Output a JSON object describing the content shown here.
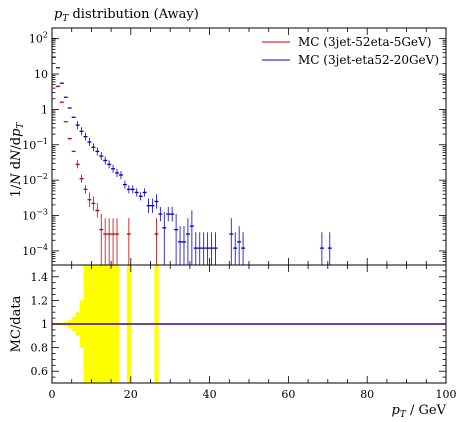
{
  "chart_data": [
    {
      "type": "scatter",
      "panel": "main",
      "title": "p_T distribution (Away)",
      "xlabel": "p_T / GeV",
      "ylabel": "1/N dN/dp_T",
      "xlim": [
        0,
        100
      ],
      "ylim": [
        4e-05,
        200
      ],
      "log_y": true,
      "y_tick_labels": [
        "10^{-4}",
        "10^{-3}",
        "10^{-2}",
        "10^{-1}",
        "1",
        "10",
        "10^{2}"
      ],
      "legend_position": "top-right",
      "series": [
        {
          "name": "MC (3jet-52eta-5GeV)",
          "color": "#cc0000",
          "points": [
            {
              "x": 0.5,
              "y": 30
            },
            {
              "x": 1.5,
              "y": 4.5
            },
            {
              "x": 2.5,
              "y": 1.6
            },
            {
              "x": 3.5,
              "y": 0.45
            },
            {
              "x": 4.5,
              "y": 0.15
            },
            {
              "x": 5.5,
              "y": 0.065
            },
            {
              "x": 6.5,
              "y": 0.028
            },
            {
              "x": 7.5,
              "y": 0.011
            },
            {
              "x": 8.5,
              "y": 0.0055
            },
            {
              "x": 9.5,
              "y": 0.0028
            },
            {
              "x": 10.5,
              "y": 0.0022
            },
            {
              "x": 11.5,
              "y": 0.0014
            },
            {
              "x": 12.5,
              "y": 0.0004
            },
            {
              "x": 13.5,
              "y": 0.0003
            },
            {
              "x": 14.5,
              "y": 0.0003
            },
            {
              "x": 15.5,
              "y": 0.0003
            },
            {
              "x": 16.5,
              "y": 0.0003
            },
            {
              "x": 19.5,
              "y": 0.0003
            },
            {
              "x": 26.5,
              "y": 0.0003
            }
          ]
        },
        {
          "name": "MC (3jet-eta52-20GeV)",
          "color": "#0000cc",
          "points": [
            {
              "x": 0.5,
              "y": 100
            },
            {
              "x": 1.5,
              "y": 15
            },
            {
              "x": 2.5,
              "y": 5.5
            },
            {
              "x": 3.5,
              "y": 2.2
            },
            {
              "x": 4.5,
              "y": 1.1
            },
            {
              "x": 5.5,
              "y": 0.6
            },
            {
              "x": 6.5,
              "y": 0.36
            },
            {
              "x": 7.5,
              "y": 0.24
            },
            {
              "x": 8.5,
              "y": 0.17
            },
            {
              "x": 9.5,
              "y": 0.12
            },
            {
              "x": 10.5,
              "y": 0.085
            },
            {
              "x": 11.5,
              "y": 0.065
            },
            {
              "x": 12.5,
              "y": 0.048
            },
            {
              "x": 13.5,
              "y": 0.036
            },
            {
              "x": 14.5,
              "y": 0.028
            },
            {
              "x": 15.5,
              "y": 0.021
            },
            {
              "x": 16.5,
              "y": 0.016
            },
            {
              "x": 17.5,
              "y": 0.014
            },
            {
              "x": 18.5,
              "y": 0.0075
            },
            {
              "x": 19.5,
              "y": 0.0055
            },
            {
              "x": 20.5,
              "y": 0.0055
            },
            {
              "x": 21.5,
              "y": 0.0045
            },
            {
              "x": 22.5,
              "y": 0.0035
            },
            {
              "x": 23.5,
              "y": 0.0045
            },
            {
              "x": 24.5,
              "y": 0.0019
            },
            {
              "x": 25.5,
              "y": 0.0019
            },
            {
              "x": 26.5,
              "y": 0.0025
            },
            {
              "x": 27.5,
              "y": 0.0011
            },
            {
              "x": 28.5,
              "y": 0.00045
            },
            {
              "x": 29.5,
              "y": 0.0011
            },
            {
              "x": 30.5,
              "y": 0.0011
            },
            {
              "x": 31.5,
              "y": 0.0004
            },
            {
              "x": 32.5,
              "y": 0.00018
            },
            {
              "x": 33.5,
              "y": 0.00018
            },
            {
              "x": 34.5,
              "y": 0.0003
            },
            {
              "x": 35.5,
              "y": 0.0005
            },
            {
              "x": 36.5,
              "y": 0.00012
            },
            {
              "x": 37.5,
              "y": 0.00012
            },
            {
              "x": 38.5,
              "y": 0.00012
            },
            {
              "x": 39.5,
              "y": 0.00012
            },
            {
              "x": 40.5,
              "y": 0.00012
            },
            {
              "x": 41.5,
              "y": 0.00012
            },
            {
              "x": 45.5,
              "y": 0.0003
            },
            {
              "x": 46.5,
              "y": 0.00012
            },
            {
              "x": 47.5,
              "y": 0.00018
            },
            {
              "x": 48.5,
              "y": 0.00012
            },
            {
              "x": 68.5,
              "y": 0.00012
            },
            {
              "x": 70.5,
              "y": 0.00012
            }
          ]
        }
      ]
    },
    {
      "type": "line",
      "panel": "ratio",
      "xlabel": "p_T / GeV",
      "ylabel": "MC/data",
      "xlim": [
        0,
        100
      ],
      "ylim": [
        0.5,
        1.5
      ],
      "x_ticks": [
        0,
        20,
        40,
        60,
        80,
        100
      ],
      "y_ticks": [
        0.6,
        0.8,
        1,
        1.2,
        1.4
      ],
      "reference_line": 1,
      "band_color": "#ffff00",
      "band": [
        {
          "x": 0.5,
          "half_width": 0.005
        },
        {
          "x": 1.5,
          "half_width": 0.008
        },
        {
          "x": 2.5,
          "half_width": 0.012
        },
        {
          "x": 3.5,
          "half_width": 0.02
        },
        {
          "x": 4.5,
          "half_width": 0.035
        },
        {
          "x": 5.5,
          "half_width": 0.06
        },
        {
          "x": 6.5,
          "half_width": 0.1
        },
        {
          "x": 7.5,
          "half_width": 0.2
        },
        {
          "x": 8.5,
          "half_width": 0.6
        },
        {
          "x": 9.5,
          "half_width": 0.6
        },
        {
          "x": 10.5,
          "half_width": 0.6
        },
        {
          "x": 11.5,
          "half_width": 0.6
        },
        {
          "x": 12.5,
          "half_width": 0.6
        },
        {
          "x": 13.5,
          "half_width": 0.6
        },
        {
          "x": 14.5,
          "half_width": 0.6
        },
        {
          "x": 15.5,
          "half_width": 0.6
        },
        {
          "x": 16.5,
          "half_width": 0.6
        },
        {
          "x": 19.5,
          "half_width": 0.6
        },
        {
          "x": 26.5,
          "half_width": 0.6
        }
      ],
      "series": [
        {
          "color": "#cc0000",
          "x": [
            0,
            100
          ],
          "values": [
            1,
            1
          ]
        },
        {
          "color": "#0000cc",
          "x": [
            0,
            100
          ],
          "values": [
            1,
            1
          ]
        }
      ]
    }
  ]
}
